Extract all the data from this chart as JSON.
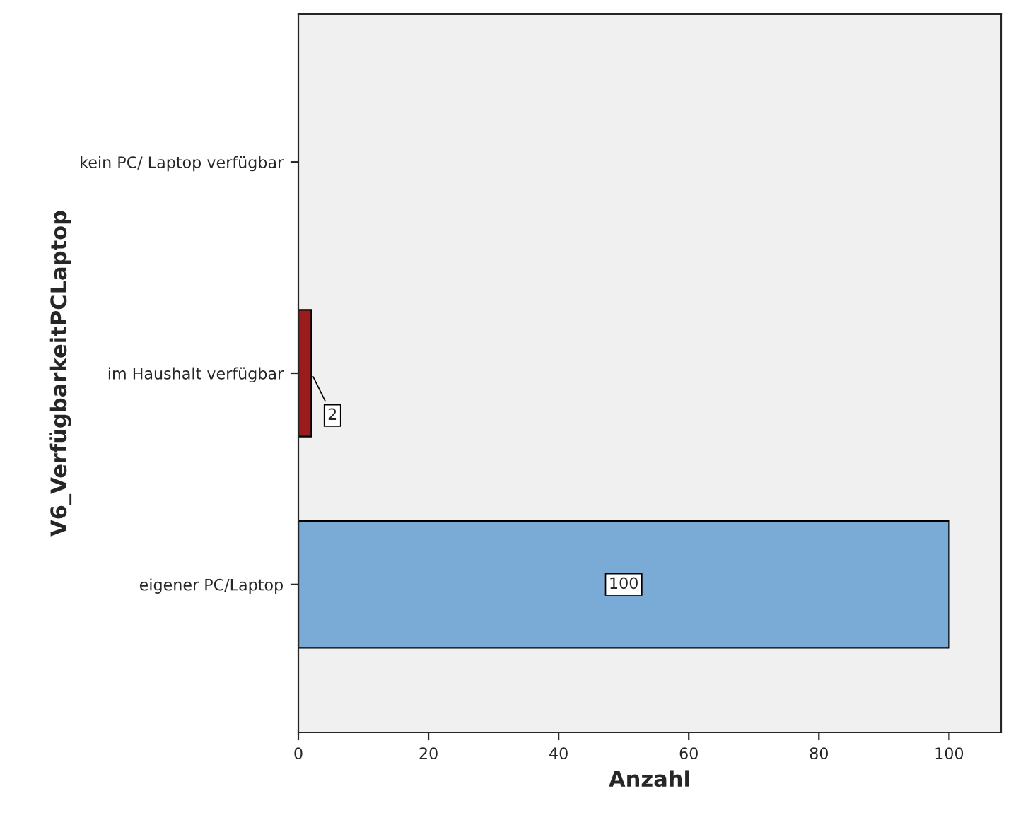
{
  "chart_data": {
    "type": "bar",
    "orientation": "horizontal",
    "xlabel": "Anzahl",
    "ylabel": "V6_VerfügbarkeitPCLaptop",
    "categories": [
      "kein PC/ Laptop verfügbar",
      "im Haushalt verfügbar",
      "eigener PC/Laptop"
    ],
    "values": [
      0,
      2,
      100
    ],
    "colors": [
      "#7aaad6",
      "#9b1c1c",
      "#7aaad6"
    ],
    "value_labels": [
      null,
      "2",
      "100"
    ],
    "xlim": [
      0,
      108
    ],
    "xticks": [
      0,
      20,
      40,
      60,
      80,
      100
    ],
    "grid": false,
    "legend": false
  }
}
